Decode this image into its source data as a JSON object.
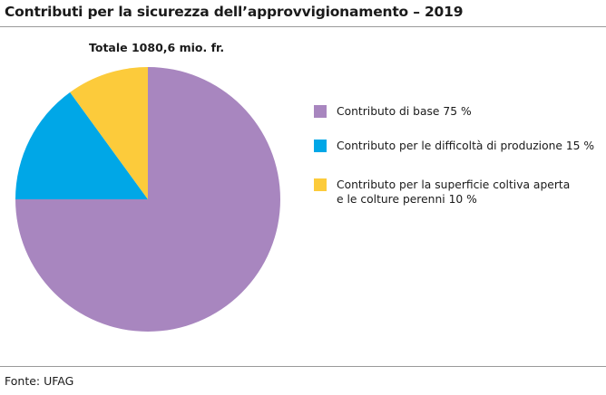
{
  "title": "Contributi per la sicurezza dell’approvvigionamento – 2019",
  "source": "Fonte: UFAG",
  "chart_data": {
    "type": "pie",
    "title": "Contributi per la sicurezza dell’approvvigionamento – 2019",
    "subtitle": "Totale 1080,6 mio. fr.",
    "total": 1080.6,
    "unit": "mio. fr.",
    "legend_position": "right",
    "slices": [
      {
        "label_lines": [
          "Contributo di base  75 %"
        ],
        "value": 75,
        "color": "#a886bf"
      },
      {
        "label_lines": [
          "Contributo per le difficoltà di produzione  15 %"
        ],
        "value": 15,
        "color": "#00a7e7"
      },
      {
        "label_lines": [
          "Contributo per la superficie coltiva aperta",
          "e le colture perenni  10 %"
        ],
        "value": 10,
        "color": "#fccb3b"
      }
    ]
  }
}
